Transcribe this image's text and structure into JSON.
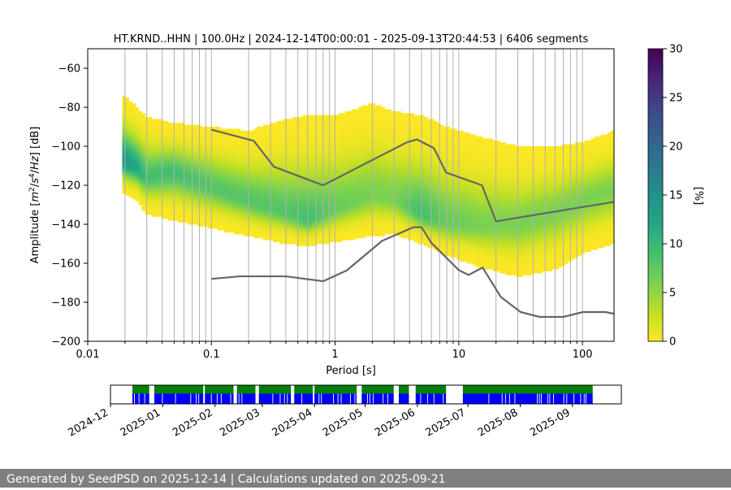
{
  "chart_data": [
    {
      "type": "heatmap",
      "title": "HT.KRND..HHN | 100.0Hz | 2024-12-14T00:00:01 - 2025-09-13T20:44:53 | 6406 segments",
      "xlabel": "Period [s]",
      "ylabel_parts": [
        "Amplitude [",
        "m",
        "2",
        "/",
        "s",
        "4",
        "/",
        "Hz",
        "] [dB]"
      ],
      "x_scale": "log",
      "xlim": [
        0.01,
        180
      ],
      "ylim": [
        -200,
        -50
      ],
      "x_ticks": [
        {
          "value": 0.01,
          "label": "0.01"
        },
        {
          "value": 0.1,
          "label": "0.1"
        },
        {
          "value": 1,
          "label": "1"
        },
        {
          "value": 10,
          "label": "10"
        },
        {
          "value": 100,
          "label": "100"
        }
      ],
      "y_ticks": [
        -60,
        -80,
        -100,
        -120,
        -140,
        -160,
        -180,
        -200
      ],
      "colorbar": {
        "label": "[%]",
        "range": [
          0,
          30
        ],
        "ticks": [
          0,
          5,
          10,
          15,
          20,
          25,
          30
        ],
        "colormap": "viridis"
      },
      "grid_periods": [
        0.02,
        0.03,
        0.04,
        0.05,
        0.06,
        0.07,
        0.08,
        0.09,
        0.1,
        0.2,
        0.3,
        0.4,
        0.5,
        0.6,
        0.7,
        0.8,
        0.9,
        1,
        2,
        3,
        4,
        5,
        6,
        7,
        8,
        9,
        10,
        20,
        30,
        40,
        50,
        60,
        70,
        80,
        90,
        100
      ],
      "density_bands": {
        "columns": [
          {
            "period": 0.019,
            "lower": -124,
            "upper": -73,
            "mode": -107,
            "peak_pct": 14
          },
          {
            "period": 0.025,
            "lower": -128,
            "upper": -80,
            "mode": -111,
            "peak_pct": 12
          },
          {
            "period": 0.03,
            "lower": -135,
            "upper": -85,
            "mode": -116,
            "peak_pct": 9
          },
          {
            "period": 0.05,
            "lower": -138,
            "upper": -88,
            "mode": -113,
            "peak_pct": 9
          },
          {
            "period": 0.1,
            "lower": -142,
            "upper": -90,
            "mode": -121,
            "peak_pct": 8
          },
          {
            "period": 0.2,
            "lower": -146,
            "upper": -92,
            "mode": -128,
            "peak_pct": 8
          },
          {
            "period": 0.4,
            "lower": -150,
            "upper": -86,
            "mode": -134,
            "peak_pct": 8
          },
          {
            "period": 0.6,
            "lower": -151,
            "upper": -84,
            "mode": -138,
            "peak_pct": 9
          },
          {
            "period": 1,
            "lower": -149,
            "upper": -84,
            "mode": -132,
            "peak_pct": 7
          },
          {
            "period": 2,
            "lower": -146,
            "upper": -78,
            "mode": -125,
            "peak_pct": 6
          },
          {
            "period": 3,
            "lower": -145,
            "upper": -82,
            "mode": -127,
            "peak_pct": 6
          },
          {
            "period": 5,
            "lower": -150,
            "upper": -84,
            "mode": -135,
            "peak_pct": 9
          },
          {
            "period": 8,
            "lower": -156,
            "upper": -90,
            "mode": -139,
            "peak_pct": 7
          },
          {
            "period": 15,
            "lower": -162,
            "upper": -95,
            "mode": -141,
            "peak_pct": 6
          },
          {
            "period": 30,
            "lower": -167,
            "upper": -100,
            "mode": -140,
            "peak_pct": 6
          },
          {
            "period": 60,
            "lower": -163,
            "upper": -100,
            "mode": -134,
            "peak_pct": 6
          },
          {
            "period": 100,
            "lower": -155,
            "upper": -98,
            "mode": -128,
            "peak_pct": 6
          },
          {
            "period": 180,
            "lower": -150,
            "upper": -92,
            "mode": -122,
            "peak_pct": 6
          }
        ]
      },
      "series": [
        {
          "line_color": "#666666",
          "x": [
            0.1,
            0.22,
            0.32,
            0.8,
            3.8,
            4.6,
            6.3,
            7.9,
            15.4,
            20,
            180
          ],
          "y": [
            -91.5,
            -97.2,
            -110.5,
            -120,
            -98,
            -96.5,
            -101,
            -113.5,
            -120,
            -138.5,
            -128.5
          ]
        },
        {
          "line_color": "#666666",
          "x": [
            0.1,
            0.17,
            0.4,
            0.8,
            1.24,
            2.4,
            4.3,
            5,
            6,
            10,
            12,
            15.6,
            21.9,
            31.6,
            45,
            70,
            101,
            154,
            180
          ],
          "y": [
            -168,
            -166.7,
            -166.7,
            -169.2,
            -163.7,
            -148.5,
            -141.5,
            -141.5,
            -149.5,
            -163.5,
            -166,
            -162.2,
            -177.3,
            -185,
            -187.5,
            -187.5,
            -185,
            -185,
            -185.9
          ]
        }
      ]
    },
    {
      "type": "timeline",
      "tick_labels": [
        "2024-12",
        "2025-01",
        "2025-02",
        "2025-03",
        "2025-04",
        "2025-05",
        "2025-06",
        "2025-07",
        "2025-08",
        "2025-09"
      ],
      "tick_dates": [
        "2024-12-01",
        "2025-01-01",
        "2025-02-01",
        "2025-03-01",
        "2025-04-01",
        "2025-05-01",
        "2025-06-01",
        "2025-07-01",
        "2025-08-01",
        "2025-09-01"
      ],
      "xlim": [
        "2024-12-01",
        "2025-09-30"
      ],
      "colors": {
        "available": "#008000",
        "used": "#0000ff"
      },
      "coverage_spans": [
        {
          "start": "2024-12-14",
          "end": "2024-12-24"
        },
        {
          "start": "2024-12-27",
          "end": "2025-01-25"
        },
        {
          "start": "2025-01-26",
          "end": "2025-02-12"
        },
        {
          "start": "2025-02-14",
          "end": "2025-02-25"
        },
        {
          "start": "2025-02-27",
          "end": "2025-03-18"
        },
        {
          "start": "2025-03-20",
          "end": "2025-03-31"
        },
        {
          "start": "2025-04-01",
          "end": "2025-04-26"
        },
        {
          "start": "2025-04-29",
          "end": "2025-05-18"
        },
        {
          "start": "2025-05-21",
          "end": "2025-05-27"
        },
        {
          "start": "2025-05-31",
          "end": "2025-06-18"
        },
        {
          "start": "2025-06-28",
          "end": "2025-09-13"
        }
      ]
    }
  ],
  "footer": {
    "text": "Generated by SeedPSD on 2025-12-14 | Calculations updated on 2025-09-21"
  }
}
